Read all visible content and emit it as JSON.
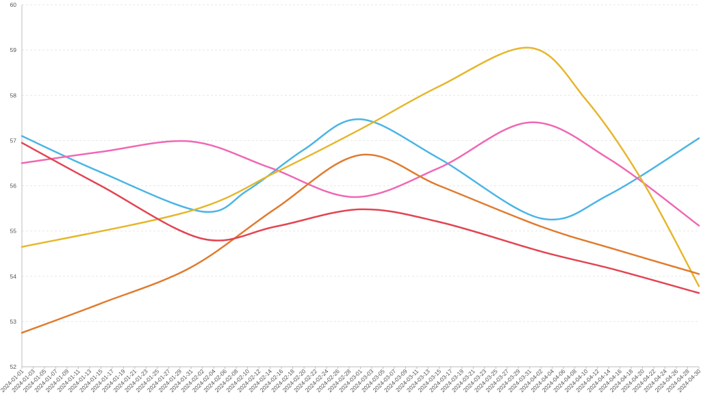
{
  "chart_data": {
    "type": "line",
    "title": "",
    "xlabel": "",
    "ylabel": "",
    "x_range": [
      "2024-01-01",
      "2024-04-30"
    ],
    "x_tick_every_days": 2,
    "ylim": [
      52,
      60
    ],
    "y_ticks": [
      52,
      53,
      54,
      55,
      56,
      57,
      58,
      59,
      60
    ],
    "grid": true,
    "legend": "none",
    "series": [
      {
        "color": "#4ab5e4",
        "points": [
          {
            "x": "2024-01-01",
            "y": 57.1
          },
          {
            "x": "2024-01-15",
            "y": 56.3
          },
          {
            "x": "2024-02-02",
            "y": 55.43
          },
          {
            "x": "2024-02-10",
            "y": 55.9
          },
          {
            "x": "2024-02-20",
            "y": 56.8
          },
          {
            "x": "2024-03-01",
            "y": 57.47
          },
          {
            "x": "2024-03-15",
            "y": 56.6
          },
          {
            "x": "2024-04-02",
            "y": 55.28
          },
          {
            "x": "2024-04-14",
            "y": 55.8
          },
          {
            "x": "2024-04-30",
            "y": 57.05
          }
        ]
      },
      {
        "color": "#f067b4",
        "points": [
          {
            "x": "2024-01-01",
            "y": 56.5
          },
          {
            "x": "2024-01-15",
            "y": 56.75
          },
          {
            "x": "2024-01-31",
            "y": 56.98
          },
          {
            "x": "2024-02-14",
            "y": 56.4
          },
          {
            "x": "2024-02-29",
            "y": 55.75
          },
          {
            "x": "2024-03-15",
            "y": 56.4
          },
          {
            "x": "2024-03-31",
            "y": 57.4
          },
          {
            "x": "2024-04-14",
            "y": 56.6
          },
          {
            "x": "2024-04-30",
            "y": 55.12
          }
        ]
      },
      {
        "color": "#e6b62a",
        "points": [
          {
            "x": "2024-01-01",
            "y": 54.65
          },
          {
            "x": "2024-01-31",
            "y": 55.45
          },
          {
            "x": "2024-02-15",
            "y": 56.3
          },
          {
            "x": "2024-03-01",
            "y": 57.25
          },
          {
            "x": "2024-03-15",
            "y": 58.2
          },
          {
            "x": "2024-03-31",
            "y": 59.05
          },
          {
            "x": "2024-04-10",
            "y": 57.9
          },
          {
            "x": "2024-04-20",
            "y": 56.1
          },
          {
            "x": "2024-04-30",
            "y": 53.78
          }
        ]
      },
      {
        "color": "#e07b2e",
        "points": [
          {
            "x": "2024-01-01",
            "y": 52.75
          },
          {
            "x": "2024-01-15",
            "y": 53.4
          },
          {
            "x": "2024-01-31",
            "y": 54.2
          },
          {
            "x": "2024-02-15",
            "y": 55.5
          },
          {
            "x": "2024-03-01",
            "y": 56.68
          },
          {
            "x": "2024-03-15",
            "y": 56.0
          },
          {
            "x": "2024-04-02",
            "y": 55.1
          },
          {
            "x": "2024-04-15",
            "y": 54.6
          },
          {
            "x": "2024-04-30",
            "y": 54.05
          }
        ]
      },
      {
        "color": "#e24452",
        "points": [
          {
            "x": "2024-01-01",
            "y": 56.95
          },
          {
            "x": "2024-01-15",
            "y": 56.0
          },
          {
            "x": "2024-02-02",
            "y": 54.83
          },
          {
            "x": "2024-02-15",
            "y": 55.1
          },
          {
            "x": "2024-03-01",
            "y": 55.48
          },
          {
            "x": "2024-03-15",
            "y": 55.2
          },
          {
            "x": "2024-04-02",
            "y": 54.55
          },
          {
            "x": "2024-04-15",
            "y": 54.15
          },
          {
            "x": "2024-04-30",
            "y": 53.63
          }
        ]
      }
    ]
  }
}
